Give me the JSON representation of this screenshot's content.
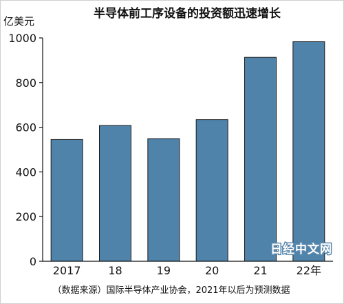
{
  "chart_data": {
    "type": "bar",
    "title": "半导体前工序设备的投资额迅速增长",
    "ylabel": "亿美元",
    "xlabel": "",
    "categories": [
      "2017",
      "18",
      "19",
      "20",
      "21",
      "22年"
    ],
    "values": [
      545,
      608,
      549,
      634,
      913,
      983
    ],
    "ylim": [
      0,
      1000
    ],
    "yticks": [
      0,
      200,
      400,
      600,
      800,
      1000
    ],
    "bar_color": "#4f83aa",
    "bar_outline_color": "#1a1a1a",
    "grid": false,
    "source": "（数据来源）国际半导体产业协会，2021年以后为预测数据"
  },
  "watermark": "日经中文网"
}
